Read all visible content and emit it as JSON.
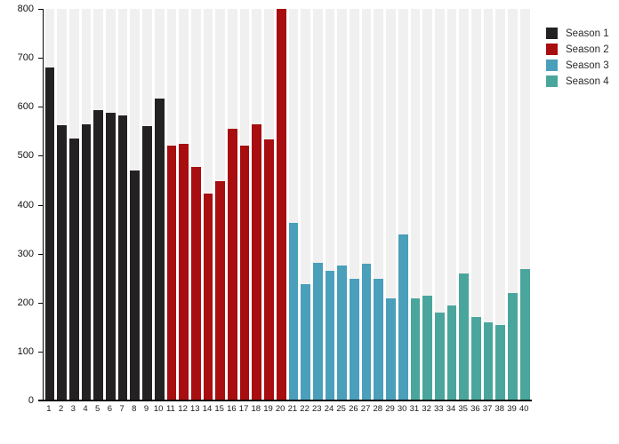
{
  "chart_data": {
    "type": "bar",
    "title": "",
    "xlabel": "",
    "ylabel": "",
    "ylim": [
      0,
      800
    ],
    "yticks": [
      0,
      100,
      200,
      300,
      400,
      500,
      600,
      700,
      800
    ],
    "categories": [
      "1",
      "2",
      "3",
      "4",
      "5",
      "6",
      "7",
      "8",
      "9",
      "10",
      "11",
      "12",
      "13",
      "14",
      "15",
      "16",
      "17",
      "18",
      "19",
      "20",
      "21",
      "22",
      "23",
      "24",
      "25",
      "26",
      "27",
      "28",
      "29",
      "30",
      "31",
      "32",
      "33",
      "34",
      "35",
      "36",
      "37",
      "38",
      "39",
      "40"
    ],
    "series": [
      {
        "name": "Season 1",
        "color": "#242122",
        "episodes": [
          "1",
          "2",
          "3",
          "4",
          "5",
          "6",
          "7",
          "8",
          "9",
          "10"
        ],
        "values": [
          680,
          563,
          535,
          565,
          593,
          587,
          583,
          470,
          561,
          616
        ]
      },
      {
        "name": "Season 2",
        "color": "#a80d0f",
        "episodes": [
          "11",
          "12",
          "13",
          "14",
          "15",
          "16",
          "17",
          "18",
          "19",
          "20"
        ],
        "values": [
          520,
          524,
          478,
          423,
          449,
          555,
          521,
          565,
          533,
          803
        ]
      },
      {
        "name": "Season 3",
        "color": "#4a9fba",
        "episodes": [
          "21",
          "22",
          "23",
          "24",
          "25",
          "26",
          "27",
          "28",
          "29",
          "30"
        ],
        "values": [
          362,
          237,
          281,
          265,
          275,
          249,
          280,
          249,
          209,
          340
        ]
      },
      {
        "name": "Season 4",
        "color": "#4aa69c",
        "episodes": [
          "31",
          "32",
          "33",
          "34",
          "35",
          "36",
          "37",
          "38",
          "39",
          "40"
        ],
        "values": [
          208,
          214,
          179,
          195,
          259,
          171,
          160,
          154,
          219,
          269
        ]
      }
    ],
    "legend": {
      "position": "top-right",
      "entries": [
        "Season 1",
        "Season 2",
        "Season 3",
        "Season 4"
      ]
    },
    "grid": false,
    "background_stripe_color": "#f0f0f0",
    "axis_color": "#0a0a0a"
  }
}
